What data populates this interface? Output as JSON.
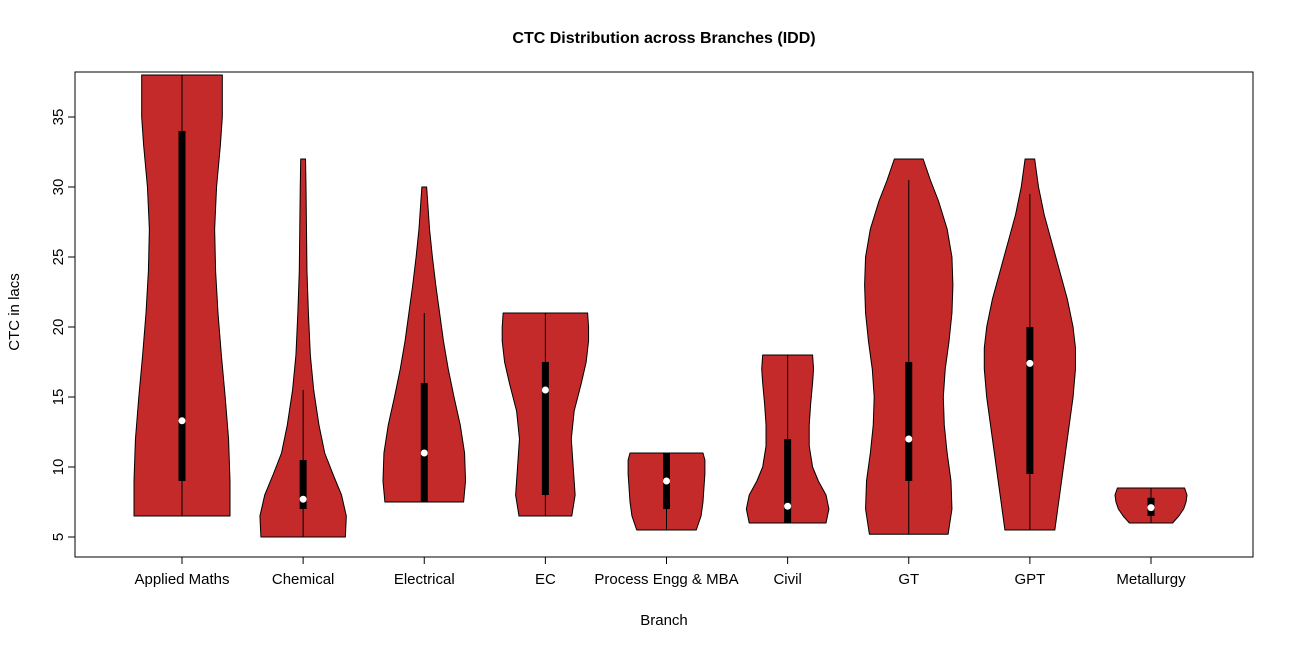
{
  "chart_data": {
    "type": "violin",
    "title": "CTC Distribution across Branches (IDD)",
    "xlabel": "Branch",
    "ylabel": "CTC in lacs",
    "yticks": [
      5,
      10,
      15,
      20,
      25,
      30,
      35
    ],
    "ylim": [
      3.5,
      38.5
    ],
    "fill_color": "#c42a2a",
    "outline_color": "#000000",
    "legend": "none",
    "grid": false,
    "categories": [
      "Applied Maths",
      "Chemical",
      "Electrical",
      "EC",
      "Process Engg & MBA",
      "Civil",
      "GT",
      "GPT",
      "Metallurgy"
    ],
    "violins": [
      {
        "branch": "Applied Maths",
        "whisker_min": 6.5,
        "whisker_max": 38,
        "q1": 9,
        "q3": 34,
        "median": 13.3,
        "profile": [
          [
            6.5,
            1.0
          ],
          [
            9,
            1.0
          ],
          [
            12,
            0.97
          ],
          [
            15,
            0.9
          ],
          [
            18,
            0.82
          ],
          [
            21,
            0.75
          ],
          [
            24,
            0.7
          ],
          [
            27,
            0.68
          ],
          [
            30,
            0.72
          ],
          [
            33,
            0.8
          ],
          [
            35,
            0.84
          ],
          [
            38,
            0.84
          ]
        ]
      },
      {
        "branch": "Chemical",
        "whisker_min": 5,
        "whisker_max": 15.5,
        "q1": 7,
        "q3": 10.5,
        "median": 7.7,
        "profile": [
          [
            5,
            0.88
          ],
          [
            6.5,
            0.9
          ],
          [
            8,
            0.8
          ],
          [
            9.5,
            0.62
          ],
          [
            11,
            0.45
          ],
          [
            13,
            0.33
          ],
          [
            15.5,
            0.22
          ],
          [
            18,
            0.15
          ],
          [
            21,
            0.11
          ],
          [
            24,
            0.08
          ],
          [
            27,
            0.07
          ],
          [
            30,
            0.06
          ],
          [
            32,
            0.05
          ]
        ]
      },
      {
        "branch": "Electrical",
        "whisker_min": 7.5,
        "whisker_max": 21,
        "q1": 7.5,
        "q3": 16,
        "median": 11,
        "profile": [
          [
            7.5,
            0.82
          ],
          [
            9,
            0.86
          ],
          [
            11,
            0.84
          ],
          [
            13,
            0.75
          ],
          [
            15,
            0.62
          ],
          [
            17,
            0.5
          ],
          [
            19,
            0.4
          ],
          [
            21,
            0.32
          ],
          [
            23,
            0.24
          ],
          [
            25,
            0.17
          ],
          [
            27,
            0.11
          ],
          [
            29,
            0.07
          ],
          [
            30,
            0.05
          ]
        ]
      },
      {
        "branch": "EC",
        "whisker_min": 6.5,
        "whisker_max": 21,
        "q1": 8,
        "q3": 17.5,
        "median": 15.5,
        "profile": [
          [
            6.5,
            0.55
          ],
          [
            8,
            0.62
          ],
          [
            10,
            0.58
          ],
          [
            12,
            0.54
          ],
          [
            14,
            0.6
          ],
          [
            16,
            0.75
          ],
          [
            17.5,
            0.85
          ],
          [
            19,
            0.9
          ],
          [
            20,
            0.9
          ],
          [
            21,
            0.88
          ]
        ]
      },
      {
        "branch": "Process Engg & MBA",
        "whisker_min": 5.5,
        "whisker_max": 11,
        "q1": 7,
        "q3": 11,
        "median": 9,
        "profile": [
          [
            5.5,
            0.62
          ],
          [
            6.5,
            0.72
          ],
          [
            7.5,
            0.76
          ],
          [
            8.5,
            0.78
          ],
          [
            9.5,
            0.8
          ],
          [
            10.5,
            0.8
          ],
          [
            11,
            0.76
          ]
        ]
      },
      {
        "branch": "Civil",
        "whisker_min": 6,
        "whisker_max": 18,
        "q1": 6,
        "q3": 12,
        "median": 7.2,
        "profile": [
          [
            6,
            0.8
          ],
          [
            7,
            0.86
          ],
          [
            8,
            0.8
          ],
          [
            9,
            0.64
          ],
          [
            10,
            0.52
          ],
          [
            11.5,
            0.45
          ],
          [
            13,
            0.45
          ],
          [
            14.5,
            0.48
          ],
          [
            16,
            0.52
          ],
          [
            17,
            0.54
          ],
          [
            18,
            0.52
          ]
        ]
      },
      {
        "branch": "GT",
        "whisker_min": 5.2,
        "whisker_max": 30.5,
        "q1": 9,
        "q3": 17.5,
        "median": 12,
        "profile": [
          [
            5.2,
            0.82
          ],
          [
            7,
            0.9
          ],
          [
            9,
            0.88
          ],
          [
            11,
            0.8
          ],
          [
            13,
            0.74
          ],
          [
            15,
            0.72
          ],
          [
            17,
            0.76
          ],
          [
            19,
            0.84
          ],
          [
            21,
            0.9
          ],
          [
            23,
            0.92
          ],
          [
            25,
            0.9
          ],
          [
            27,
            0.8
          ],
          [
            29,
            0.62
          ],
          [
            30.5,
            0.45
          ],
          [
            32,
            0.3
          ]
        ]
      },
      {
        "branch": "GPT",
        "whisker_min": 5.5,
        "whisker_max": 29.5,
        "q1": 9.5,
        "q3": 20,
        "median": 17.4,
        "profile": [
          [
            5.5,
            0.52
          ],
          [
            7,
            0.58
          ],
          [
            9,
            0.66
          ],
          [
            11,
            0.74
          ],
          [
            13,
            0.82
          ],
          [
            15,
            0.9
          ],
          [
            17,
            0.95
          ],
          [
            18.5,
            0.95
          ],
          [
            20,
            0.9
          ],
          [
            22,
            0.78
          ],
          [
            24,
            0.62
          ],
          [
            26,
            0.46
          ],
          [
            28,
            0.3
          ],
          [
            30,
            0.18
          ],
          [
            31.5,
            0.12
          ],
          [
            32,
            0.1
          ]
        ]
      },
      {
        "branch": "Metallurgy",
        "whisker_min": 6,
        "whisker_max": 8.5,
        "q1": 6.5,
        "q3": 7.8,
        "median": 7.1,
        "profile": [
          [
            6,
            0.45
          ],
          [
            6.5,
            0.58
          ],
          [
            7,
            0.68
          ],
          [
            7.5,
            0.73
          ],
          [
            8,
            0.75
          ],
          [
            8.5,
            0.7
          ]
        ]
      }
    ]
  }
}
